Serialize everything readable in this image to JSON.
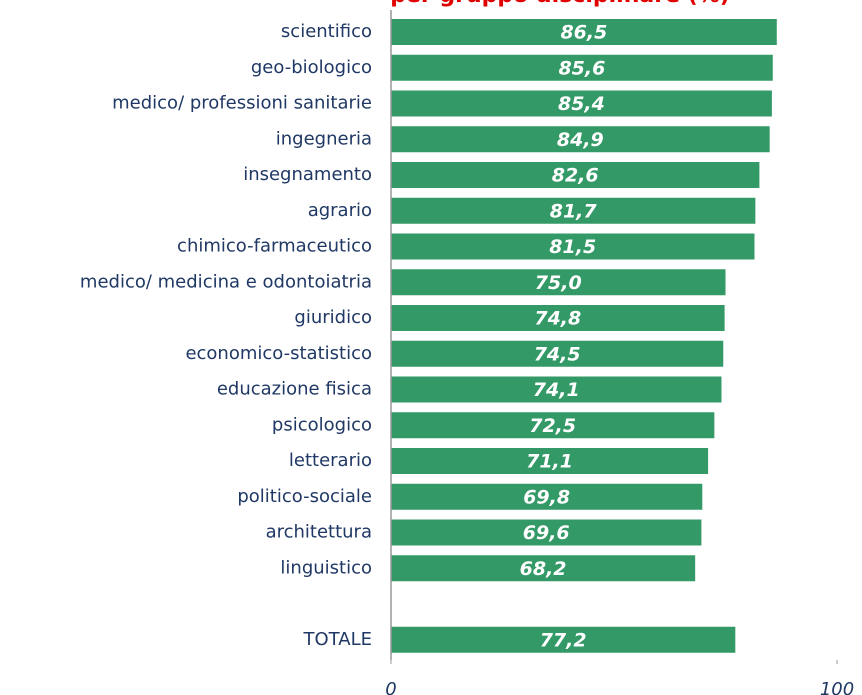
{
  "chart_data": {
    "type": "bar",
    "orientation": "horizontal",
    "title": "per gruppo disciplinare (%)",
    "categories": [
      "scientifico",
      "geo-biologico",
      "medico/ professioni sanitarie",
      "ingegneria",
      "insegnamento",
      "agrario",
      "chimico-farmaceutico",
      "medico/ medicina e odontoiatria",
      "giuridico",
      "economico-statistico",
      "educazione fisica",
      "psicologico",
      "letterario",
      "politico-sociale",
      "architettura",
      "linguistico",
      null,
      "TOTALE"
    ],
    "values": [
      86.5,
      85.6,
      85.4,
      84.9,
      82.6,
      81.7,
      81.5,
      75.0,
      74.8,
      74.5,
      74.1,
      72.5,
      71.1,
      69.8,
      69.6,
      68.2,
      null,
      77.2
    ],
    "value_labels": [
      "86,5",
      "85,6",
      "85,4",
      "84,9",
      "82,6",
      "81,7",
      "81,5",
      "75,0",
      "74,8",
      "74,5",
      "74,1",
      "72,5",
      "71,1",
      "69,8",
      "69,6",
      "68,2",
      null,
      "77,2"
    ],
    "color": "#339966",
    "xlim": [
      0,
      100
    ],
    "xticks": [
      0,
      100
    ]
  }
}
